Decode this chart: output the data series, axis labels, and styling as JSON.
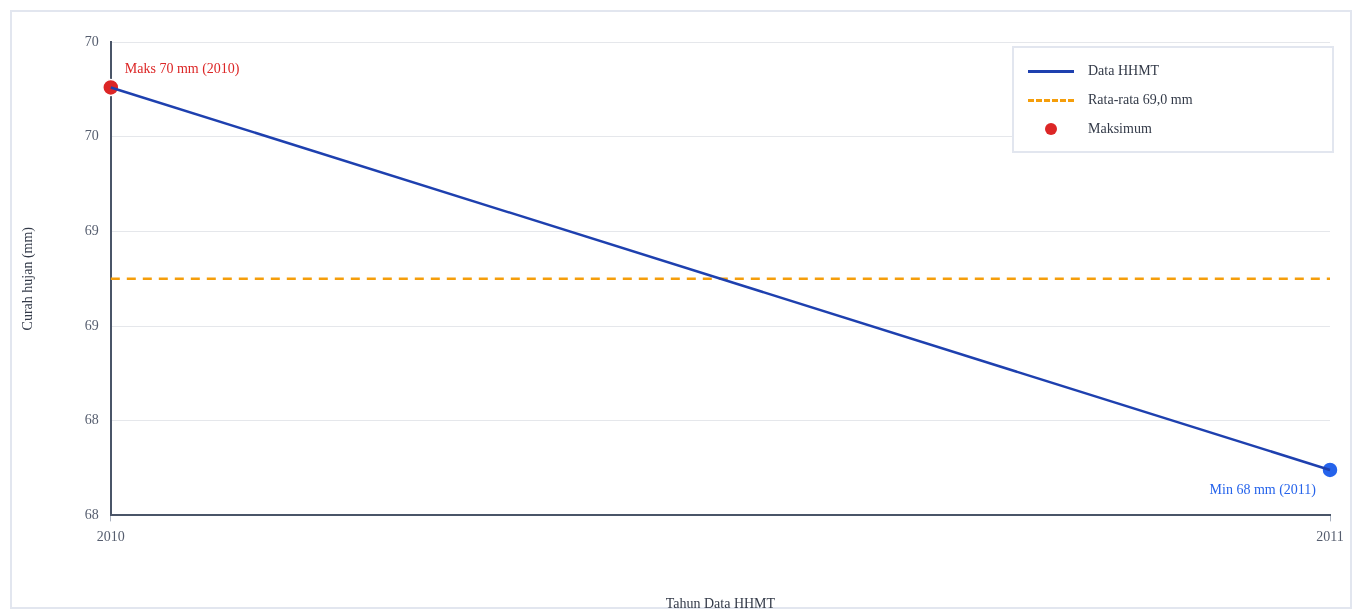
{
  "chart_data": {
    "type": "line",
    "xlabel": "Tahun Data HHMT",
    "ylabel": "Curah hujan (mm)",
    "x": [
      2010,
      2011
    ],
    "xlim": [
      2010,
      2011
    ],
    "xticks": [
      2010,
      2011
    ],
    "ylim": [
      67.7,
      70.2
    ],
    "yticks": [
      {
        "value": 67.7,
        "label": "68"
      },
      {
        "value": 68.2,
        "label": "68"
      },
      {
        "value": 68.7,
        "label": "69"
      },
      {
        "value": 69.2,
        "label": "69"
      },
      {
        "value": 69.7,
        "label": "70"
      },
      {
        "value": 70.2,
        "label": "70"
      }
    ],
    "grid": "y",
    "legend": "top right",
    "marker": "none",
    "series": [
      {
        "name": "Data HHMT",
        "type": "line",
        "color": "#1e40af",
        "values": [
          69.96,
          67.94
        ]
      },
      {
        "name": "Rata-rata 69,0 mm",
        "type": "line",
        "line_style": "dashed",
        "color": "#f59e0b",
        "values": [
          68.95,
          68.95
        ]
      },
      {
        "name": "Maksimum",
        "type": "scatter",
        "marker": "circle",
        "color": "#dc2626",
        "values": [
          69.96,
          null
        ]
      },
      {
        "type": "scatter",
        "marker": "circle",
        "color": "#2563eb",
        "values": [
          null,
          67.94
        ]
      }
    ],
    "annotations": [
      {
        "text": "Maks 70 mm (2010)",
        "x": 2010,
        "y": 69.96
      },
      {
        "text": "Min 68 mm (2011)",
        "x": 2011,
        "y": 67.94
      }
    ]
  }
}
